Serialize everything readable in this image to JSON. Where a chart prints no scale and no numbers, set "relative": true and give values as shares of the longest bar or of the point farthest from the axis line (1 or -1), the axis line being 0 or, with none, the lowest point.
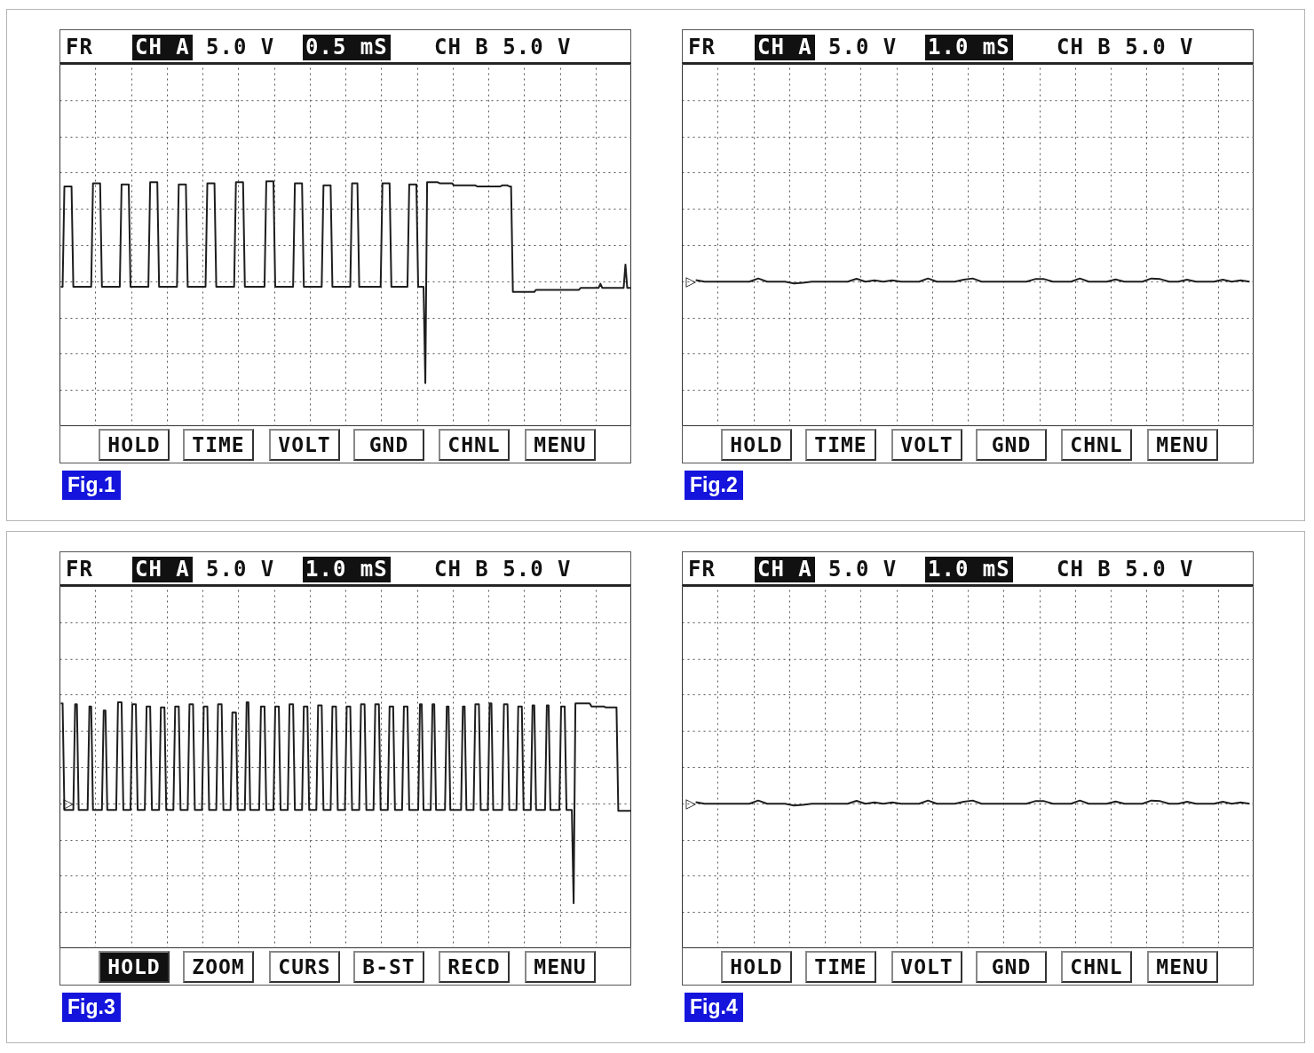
{
  "chart_data": [
    {
      "type": "line",
      "title": "Fig.1",
      "annotations": [
        "FR",
        "CH A",
        "5.0 V",
        "0.5 mS",
        "CH B 5.0 V",
        "HOLD",
        "TIME",
        "VOLT",
        "GND",
        "CHNL",
        "MENU"
      ],
      "relative": true,
      "grid": true,
      "line_style": "solid",
      "categories": [
        null,
        null,
        null,
        null,
        null,
        null,
        null,
        null,
        null,
        null,
        null,
        null,
        null,
        null,
        null,
        null,
        null,
        null,
        null,
        null,
        null,
        null,
        null,
        null,
        null,
        null,
        null,
        null,
        null,
        null,
        null,
        null,
        null,
        null,
        null,
        null,
        null,
        null,
        null,
        null,
        null,
        null,
        null,
        null,
        null,
        null,
        null,
        null,
        null,
        null,
        null,
        null,
        null,
        null,
        null,
        null,
        null,
        null,
        null,
        null,
        null,
        null,
        null,
        null,
        null,
        null,
        null,
        null,
        null,
        null,
        null,
        null,
        null,
        null,
        null,
        null,
        null,
        null,
        null,
        null,
        null,
        null,
        null,
        null,
        null,
        null,
        null,
        null,
        null,
        null,
        null,
        null,
        null,
        null,
        null,
        null,
        null,
        null,
        null,
        null,
        null,
        null,
        null,
        null,
        null,
        null,
        null,
        null,
        null,
        null,
        null,
        null,
        null,
        null,
        null,
        null,
        null,
        null,
        null,
        null,
        null,
        null,
        null,
        null,
        null,
        null,
        null,
        null,
        null,
        null,
        null,
        null,
        null,
        null,
        null,
        null,
        null,
        null,
        null,
        null,
        null,
        null,
        null,
        null,
        null,
        null,
        null,
        null,
        null,
        null,
        null,
        null,
        null,
        null,
        null,
        null,
        null,
        null,
        null,
        null,
        null,
        null,
        null,
        null,
        null,
        null,
        null,
        null,
        null,
        null,
        null,
        null,
        null,
        null,
        null,
        null,
        null,
        null,
        null,
        null,
        null,
        null,
        null,
        null,
        null,
        null,
        null,
        null,
        null,
        null,
        null,
        null,
        null,
        null,
        null,
        null,
        null,
        null,
        null,
        null,
        null,
        null,
        null,
        null,
        null,
        null,
        null,
        null,
        null,
        null,
        null,
        null,
        null,
        null,
        null,
        null,
        null,
        null,
        null,
        null,
        null,
        null,
        null,
        null,
        null,
        null,
        null,
        null,
        null,
        null,
        null,
        null,
        null,
        null,
        null,
        null,
        null,
        null,
        null,
        null,
        null,
        null,
        null,
        null,
        null,
        null,
        null,
        null,
        null,
        null,
        null,
        null,
        null,
        null,
        null,
        null,
        null,
        null,
        null,
        null,
        null,
        null,
        null,
        null,
        null,
        null,
        null,
        null,
        null,
        null,
        null,
        null,
        null,
        null,
        null,
        null,
        null,
        null,
        null,
        null,
        null,
        null,
        null,
        null,
        null,
        null,
        null,
        null,
        null,
        null,
        null,
        null,
        null,
        null,
        null,
        null,
        null,
        null,
        null,
        null,
        null,
        null,
        null,
        null,
        null,
        null,
        null,
        null,
        null,
        null,
        null,
        null,
        null,
        null,
        null,
        null,
        null,
        null,
        null,
        null
      ],
      "series": [
        {
          "color": "#1e1e1e",
          "values": [
            -0.05,
            -0.05,
            0.94,
            0.94,
            0.94,
            0.94,
            0.94,
            -0.05,
            -0.05,
            -0.05,
            -0.05,
            -0.05,
            -0.05,
            -0.05,
            -0.05,
            -0.05,
            -0.05,
            -0.05,
            0.97,
            0.97,
            0.97,
            0.97,
            0.97,
            -0.05,
            -0.05,
            -0.05,
            -0.05,
            -0.05,
            -0.05,
            -0.05,
            -0.05,
            -0.05,
            -0.05,
            -0.05,
            0.96,
            0.96,
            0.96,
            0.96,
            0.96,
            -0.05,
            -0.05,
            -0.05,
            -0.05,
            -0.05,
            -0.05,
            -0.05,
            -0.05,
            -0.05,
            -0.05,
            -0.05,
            0.98,
            0.98,
            0.98,
            0.98,
            0.98,
            -0.05,
            -0.05,
            -0.05,
            -0.05,
            -0.05,
            -0.05,
            -0.05,
            -0.05,
            -0.05,
            -0.05,
            -0.05,
            0.96,
            0.96,
            0.96,
            0.96,
            0.96,
            -0.05,
            -0.05,
            -0.05,
            -0.05,
            -0.05,
            -0.05,
            -0.05,
            -0.05,
            -0.05,
            -0.05,
            -0.05,
            0.97,
            0.97,
            0.97,
            0.97,
            0.97,
            -0.05,
            -0.05,
            -0.05,
            -0.05,
            -0.05,
            -0.05,
            -0.05,
            -0.05,
            -0.05,
            -0.05,
            -0.05,
            0.98,
            0.98,
            0.98,
            0.98,
            0.98,
            -0.05,
            -0.05,
            -0.05,
            -0.05,
            -0.05,
            -0.05,
            -0.05,
            -0.05,
            -0.05,
            -0.05,
            -0.05,
            -0.05,
            0.99,
            0.99,
            0.99,
            0.99,
            0.99,
            -0.05,
            -0.05,
            -0.05,
            -0.05,
            -0.05,
            -0.05,
            -0.05,
            -0.05,
            -0.05,
            -0.05,
            -0.05,
            0.97,
            0.97,
            0.97,
            0.97,
            0.97,
            -0.05,
            -0.05,
            -0.05,
            -0.05,
            -0.05,
            -0.05,
            -0.05,
            -0.05,
            -0.05,
            -0.05,
            -0.05,
            0.95,
            0.95,
            0.95,
            0.95,
            0.95,
            -0.05,
            -0.05,
            -0.05,
            -0.05,
            -0.05,
            -0.05,
            -0.05,
            -0.05,
            -0.05,
            -0.05,
            -0.05,
            0.97,
            0.97,
            0.97,
            0.97,
            -0.05,
            -0.05,
            -0.05,
            -0.05,
            -0.05,
            -0.05,
            -0.05,
            -0.05,
            -0.05,
            -0.05,
            -0.05,
            -0.05,
            -0.05,
            0.97,
            0.97,
            0.97,
            0.97,
            0.97,
            -0.05,
            -0.05,
            -0.05,
            -0.05,
            -0.05,
            -0.05,
            -0.05,
            -0.05,
            -0.05,
            -0.05,
            0.96,
            0.96,
            0.96,
            0.96,
            0.96,
            -0.05,
            -0.05,
            -0.05,
            -0.05,
            -1,
            0.98,
            0.98,
            0.98,
            0.98,
            0.98,
            0.98,
            0.98,
            0.97,
            0.97,
            0.97,
            0.97,
            0.97,
            0.97,
            0.97,
            0.97,
            0.95,
            0.95,
            0.95,
            0.95,
            0.95,
            0.95,
            0.95,
            0.95,
            0.95,
            0.95,
            0.95,
            0.95,
            0.95,
            0.94,
            0.94,
            0.94,
            0.94,
            0.94,
            0.94,
            0.94,
            0.94,
            0.94,
            0.94,
            0.94,
            0.94,
            0.94,
            0.94,
            0.95,
            0.95,
            0.95,
            0.95,
            0.94,
            0.94,
            -0.1,
            -0.1,
            -0.1,
            -0.1,
            -0.1,
            -0.1,
            -0.1,
            -0.1,
            -0.1,
            -0.1,
            -0.1,
            -0.1,
            -0.1,
            -0.08,
            -0.08,
            -0.08,
            -0.08,
            -0.08,
            -0.08,
            -0.08,
            -0.08,
            -0.08,
            -0.08,
            -0.08,
            -0.08,
            -0.08,
            -0.08,
            -0.08,
            -0.08,
            -0.08,
            -0.08,
            -0.08,
            -0.08,
            -0.08,
            -0.08,
            -0.08,
            -0.08,
            -0.08,
            -0.06,
            -0.06,
            -0.06,
            -0.06,
            -0.06,
            -0.06,
            -0.06,
            -0.06,
            -0.06,
            -0.06,
            -0.06,
            -0.02,
            -0.06,
            -0.06,
            -0.06,
            -0.06,
            -0.06,
            -0.06,
            -0.06,
            -0.06,
            -0.06,
            -0.06,
            -0.06,
            -0.06,
            -0.06,
            0.17,
            -0.06,
            -0.06,
            -0.06
          ]
        }
      ]
    },
    {
      "type": "line",
      "title": "Fig.2",
      "annotations": [
        "FR",
        "CH A",
        "5.0 V",
        "1.0 mS",
        "CH B 5.0 V",
        "HOLD",
        "TIME",
        "VOLT",
        "GND",
        "CHNL",
        "MENU",
        "▷"
      ],
      "relative": true,
      "grid": true,
      "line_style": "solid",
      "categories": [
        null,
        null,
        null,
        null,
        null,
        null,
        null,
        null,
        null,
        null,
        null,
        null,
        null,
        null,
        null,
        null,
        null,
        null,
        null,
        null,
        null,
        null,
        null,
        null,
        null,
        null,
        null,
        null,
        null,
        null,
        null,
        null,
        null,
        null,
        null,
        null,
        null,
        null,
        null,
        null,
        null,
        null,
        null,
        null,
        null,
        null,
        null,
        null,
        null,
        null,
        null,
        null,
        null,
        null,
        null,
        null,
        null,
        null,
        null,
        null,
        null,
        null,
        null,
        null
      ],
      "series": [
        {
          "color": "#1e1e1e",
          "values": [
            null,
            0.5,
            0,
            0,
            0,
            0,
            0,
            0,
            1.0,
            0,
            0,
            0,
            -0.55,
            -0.3,
            0,
            0,
            0,
            0,
            0,
            0.9,
            0,
            0.4,
            0,
            0.4,
            0,
            0,
            0,
            1.0,
            0,
            0,
            0,
            0.6,
            1.0,
            0,
            0,
            0,
            0,
            0,
            0,
            0.8,
            0.8,
            0,
            0,
            0,
            1.0,
            0,
            0,
            0,
            0.7,
            0,
            0,
            0,
            1.0,
            0.8,
            0,
            0,
            0.6,
            0,
            0,
            0,
            0.6,
            0,
            0.4,
            0
          ]
        }
      ]
    },
    {
      "type": "line",
      "title": "Fig.3",
      "annotations": [
        "FR",
        "CH A",
        "5.0 V",
        "1.0 mS",
        "CH B 5.0 V",
        "HOLD",
        "ZOOM",
        "CURS",
        "B-ST",
        "RECD",
        "MENU",
        "▷"
      ],
      "relative": true,
      "grid": true,
      "line_style": "solid",
      "categories": [
        null,
        null,
        null,
        null,
        null,
        null,
        null,
        null,
        null,
        null,
        null,
        null,
        null,
        null,
        null,
        null,
        null,
        null,
        null,
        null,
        null,
        null,
        null,
        null,
        null,
        null,
        null,
        null,
        null,
        null,
        null,
        null,
        null,
        null,
        null,
        null,
        null,
        null,
        null,
        null,
        null,
        null,
        null,
        null,
        null,
        null,
        null,
        null,
        null,
        null,
        null,
        null,
        null,
        null,
        null,
        null,
        null,
        null,
        null,
        null,
        null,
        null,
        null,
        null,
        null,
        null,
        null,
        null,
        null,
        null,
        null,
        null,
        null,
        null,
        null,
        null,
        null,
        null,
        null,
        null,
        null,
        null,
        null,
        null,
        null,
        null,
        null,
        null,
        null,
        null,
        null,
        null,
        null,
        null,
        null,
        null,
        null,
        null,
        null,
        null,
        null,
        null,
        null,
        null,
        null,
        null,
        null,
        null,
        null,
        null,
        null,
        null,
        null,
        null,
        null,
        null,
        null,
        null,
        null,
        null,
        null,
        null,
        null,
        null,
        null,
        null,
        null,
        null,
        null,
        null,
        null,
        null,
        null,
        null,
        null,
        null,
        null,
        null,
        null,
        null,
        null,
        null,
        null,
        null,
        null,
        null,
        null,
        null,
        null,
        null,
        null,
        null,
        null,
        null,
        null,
        null,
        null,
        null,
        null,
        null,
        null,
        null,
        null,
        null,
        null,
        null,
        null,
        null,
        null,
        null,
        null,
        null,
        null,
        null,
        null,
        null,
        null,
        null,
        null,
        null,
        null,
        null,
        null,
        null,
        null,
        null,
        null,
        null,
        null,
        null,
        null,
        null,
        null,
        null,
        null,
        null,
        null,
        null,
        null,
        null,
        null,
        null,
        null,
        null,
        null,
        null,
        null,
        null,
        null,
        null,
        null,
        null,
        null,
        null,
        null,
        null,
        null,
        null,
        null,
        null,
        null,
        null,
        null,
        null,
        null,
        null,
        null,
        null,
        null,
        null,
        null,
        null,
        null,
        null,
        null,
        null,
        null,
        null,
        null,
        null,
        null,
        null,
        null,
        null,
        null,
        null,
        null,
        null,
        null,
        null,
        null,
        null,
        null,
        null,
        null,
        null,
        null,
        null,
        null,
        null,
        null,
        null,
        null,
        null,
        null,
        null,
        null,
        null,
        null,
        null,
        null,
        null,
        null,
        null,
        null,
        null,
        null,
        null,
        null,
        null,
        null,
        null,
        null,
        null,
        null,
        null,
        null,
        null,
        null,
        null,
        null,
        null,
        null,
        null,
        null,
        null,
        null,
        null,
        null,
        null,
        null,
        null,
        null,
        null,
        null,
        null,
        null,
        null,
        null,
        null,
        null,
        null,
        null,
        null,
        null,
        null,
        null,
        null,
        null,
        null
      ],
      "series": [
        {
          "color": "#1e1e1e",
          "values": [
            0.99,
            0.99,
            -0.06,
            -0.06,
            -0.06,
            -0.06,
            -0.06,
            -0.06,
            0.98,
            0.98,
            -0.06,
            -0.06,
            -0.06,
            -0.06,
            -0.06,
            -0.06,
            0.96,
            0.96,
            -0.06,
            -0.06,
            -0.06,
            -0.06,
            -0.06,
            -0.06,
            0.92,
            0.92,
            -0.06,
            -0.06,
            -0.06,
            -0.06,
            -0.06,
            -0.06,
            1.0,
            1.0,
            1.0,
            -0.06,
            -0.06,
            -0.06,
            -0.06,
            -0.06,
            0.98,
            0.98,
            0.98,
            -0.06,
            -0.06,
            -0.06,
            -0.06,
            -0.06,
            0.96,
            0.96,
            0.96,
            -0.06,
            -0.06,
            -0.06,
            -0.06,
            -0.06,
            0.95,
            0.95,
            0.95,
            -0.06,
            -0.06,
            -0.06,
            -0.06,
            -0.06,
            0.96,
            0.96,
            0.96,
            -0.06,
            -0.06,
            -0.06,
            -0.06,
            -0.06,
            0.98,
            0.98,
            0.98,
            -0.06,
            -0.06,
            -0.06,
            -0.06,
            -0.06,
            0.96,
            0.96,
            0.96,
            -0.06,
            -0.06,
            -0.06,
            -0.06,
            -0.06,
            0.98,
            0.98,
            0.98,
            -0.06,
            -0.06,
            -0.06,
            -0.06,
            -0.06,
            0.9,
            0.9,
            0.9,
            -0.06,
            -0.06,
            -0.06,
            -0.06,
            -0.06,
            1.0,
            1.0,
            -0.06,
            -0.06,
            -0.06,
            -0.06,
            -0.06,
            -0.06,
            0.96,
            0.96,
            0.96,
            -0.06,
            -0.06,
            -0.06,
            -0.06,
            -0.06,
            0.96,
            0.96,
            0.96,
            -0.06,
            -0.06,
            -0.06,
            -0.06,
            -0.06,
            0.98,
            0.98,
            0.98,
            -0.06,
            -0.06,
            -0.06,
            -0.06,
            -0.06,
            0.96,
            0.96,
            0.96,
            -0.06,
            -0.06,
            -0.06,
            -0.06,
            -0.06,
            0.97,
            0.97,
            0.97,
            -0.06,
            -0.06,
            -0.06,
            -0.06,
            -0.06,
            0.96,
            0.96,
            0.96,
            -0.06,
            -0.06,
            -0.06,
            -0.06,
            -0.06,
            0.96,
            0.96,
            0.96,
            -0.06,
            -0.06,
            -0.06,
            -0.06,
            -0.06,
            0.98,
            0.98,
            0.98,
            -0.06,
            -0.06,
            -0.06,
            -0.06,
            -0.06,
            0.98,
            0.98,
            0.98,
            -0.06,
            -0.06,
            -0.06,
            -0.06,
            -0.06,
            0.96,
            0.96,
            0.96,
            -0.06,
            -0.06,
            -0.06,
            -0.06,
            -0.06,
            0.96,
            0.96,
            0.96,
            -0.06,
            -0.06,
            -0.06,
            -0.06,
            -0.06,
            -0.06,
            0.98,
            0.98,
            -0.06,
            -0.06,
            -0.06,
            -0.06,
            -0.06,
            0.98,
            0.98,
            -0.06,
            -0.06,
            -0.06,
            -0.06,
            -0.06,
            -0.06,
            0.96,
            0.96,
            -0.06,
            -0.06,
            -0.06,
            -0.06,
            -0.06,
            -0.06,
            -0.06,
            0.96,
            0.96,
            -0.06,
            -0.06,
            -0.06,
            -0.06,
            -0.06,
            0.98,
            0.98,
            0.98,
            -0.06,
            -0.06,
            -0.06,
            -0.06,
            -0.06,
            0.99,
            0.99,
            -0.06,
            -0.06,
            -0.06,
            -0.06,
            -0.06,
            -0.06,
            0.98,
            0.98,
            0.98,
            -0.06,
            -0.06,
            -0.06,
            -0.06,
            -0.06,
            0.96,
            0.96,
            0.96,
            -0.06,
            -0.06,
            -0.06,
            -0.06,
            -0.06,
            0.97,
            0.97,
            -0.06,
            -0.06,
            -0.06,
            -0.06,
            -0.06,
            -0.06,
            0.97,
            0.97,
            -0.06,
            -0.06,
            -0.06,
            -0.06,
            -0.06,
            -0.06,
            0.96,
            0.96,
            0.96,
            -0.06,
            -0.06,
            -0.06,
            -0.06,
            -0.98,
            0.99,
            0.99,
            0.99,
            0.99,
            0.99,
            0.99,
            0.99,
            0.99,
            0.99,
            0.96,
            0.96,
            0.96,
            0.96,
            0.96,
            0.96,
            0.96,
            0.96,
            0.95,
            0.95,
            0.95,
            0.95,
            0.95,
            0.95,
            0.95,
            -0.07,
            -0.07,
            -0.07,
            -0.07,
            -0.07,
            -0.07,
            -0.07,
            -0.07
          ]
        }
      ]
    },
    {
      "type": "line",
      "title": "Fig.4",
      "annotations": [
        "FR",
        "CH A",
        "5.0 V",
        "1.0 mS",
        "CH B 5.0 V",
        "HOLD",
        "TIME",
        "VOLT",
        "GND",
        "CHNL",
        "MENU",
        "▷"
      ],
      "relative": true,
      "grid": true,
      "line_style": "solid",
      "categories": [
        null,
        null,
        null,
        null,
        null,
        null,
        null,
        null,
        null,
        null,
        null,
        null,
        null,
        null,
        null,
        null,
        null,
        null,
        null,
        null,
        null,
        null,
        null,
        null,
        null,
        null,
        null,
        null,
        null,
        null,
        null,
        null,
        null,
        null,
        null,
        null,
        null,
        null,
        null,
        null,
        null,
        null,
        null,
        null,
        null,
        null,
        null,
        null,
        null,
        null,
        null,
        null,
        null,
        null,
        null,
        null,
        null,
        null,
        null,
        null,
        null,
        null,
        null,
        null
      ],
      "series": [
        {
          "color": "#1e1e1e",
          "values": [
            null,
            0.5,
            0,
            0,
            0,
            0,
            0,
            0,
            1.0,
            0,
            0,
            0,
            -0.55,
            -0.3,
            0,
            0,
            0,
            0,
            0,
            0.9,
            0,
            0.4,
            0,
            0.4,
            0,
            0,
            0,
            1.0,
            0,
            0,
            0,
            0.6,
            1.0,
            0,
            0,
            0,
            0,
            0,
            0,
            0.8,
            0.8,
            0,
            0,
            0,
            1.0,
            0,
            0,
            0,
            0.7,
            0,
            0,
            0,
            1.0,
            0.8,
            0,
            0,
            0.6,
            0,
            0,
            0,
            0.6,
            0,
            0.4,
            0
          ]
        }
      ]
    }
  ]
}
